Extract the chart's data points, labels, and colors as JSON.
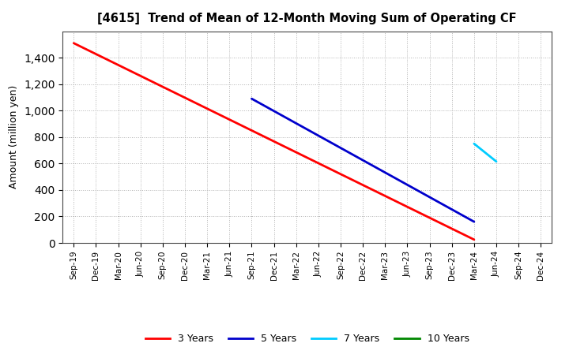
{
  "title": "[4615]  Trend of Mean of 12-Month Moving Sum of Operating CF",
  "ylabel": "Amount (million yen)",
  "background_color": "#ffffff",
  "plot_bg_color": "#ffffff",
  "grid_color": "#aaaaaa",
  "x_labels": [
    "Sep-19",
    "Dec-19",
    "Mar-20",
    "Jun-20",
    "Sep-20",
    "Dec-20",
    "Mar-21",
    "Jun-21",
    "Sep-21",
    "Dec-21",
    "Mar-22",
    "Jun-22",
    "Sep-22",
    "Dec-22",
    "Mar-23",
    "Jun-23",
    "Sep-23",
    "Dec-23",
    "Mar-24",
    "Jun-24",
    "Sep-24",
    "Dec-24"
  ],
  "ylim": [
    0,
    1600
  ],
  "yticks": [
    0,
    200,
    400,
    600,
    800,
    1000,
    1200,
    1400
  ],
  "series": {
    "3 Years": {
      "color": "#ff0000",
      "data": [
        1510,
        null,
        null,
        null,
        null,
        null,
        null,
        null,
        null,
        null,
        null,
        null,
        null,
        null,
        null,
        null,
        null,
        null,
        25,
        null,
        null,
        null
      ]
    },
    "5 Years": {
      "color": "#0000cc",
      "data": [
        null,
        null,
        null,
        null,
        null,
        null,
        null,
        null,
        1090,
        null,
        null,
        null,
        null,
        null,
        null,
        null,
        null,
        null,
        160,
        null,
        null,
        null
      ]
    },
    "7 Years": {
      "color": "#00ccff",
      "data": [
        null,
        null,
        null,
        null,
        null,
        null,
        null,
        null,
        null,
        null,
        null,
        null,
        null,
        null,
        null,
        null,
        null,
        null,
        750,
        615,
        null,
        null
      ]
    },
    "10 Years": {
      "color": "#008800",
      "data": [
        null,
        null,
        null,
        null,
        null,
        null,
        null,
        null,
        null,
        null,
        null,
        null,
        null,
        null,
        null,
        null,
        null,
        null,
        null,
        null,
        null,
        null
      ]
    }
  },
  "legend_order": [
    "3 Years",
    "5 Years",
    "7 Years",
    "10 Years"
  ]
}
